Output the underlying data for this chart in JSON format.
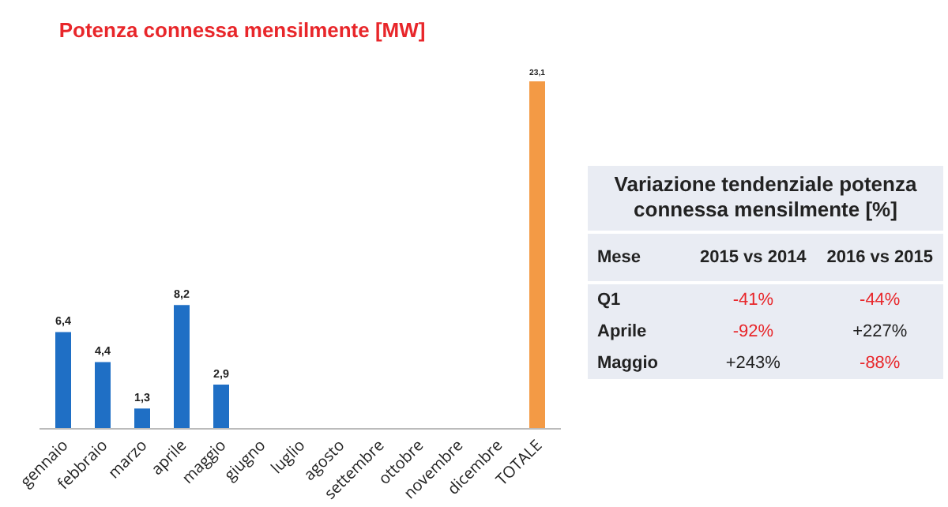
{
  "chart_data": [
    {
      "type": "bar",
      "title": "Potenza connessa mensilmente [MW]",
      "categories": [
        "gennaio",
        "febbraio",
        "marzo",
        "aprile",
        "maggio",
        "giugno",
        "luglio",
        "agosto",
        "settembre",
        "ottobre",
        "novembre",
        "dicembre",
        "TOTALE"
      ],
      "values": [
        6.4,
        4.4,
        1.3,
        8.2,
        2.9,
        null,
        null,
        null,
        null,
        null,
        null,
        null,
        23.1
      ],
      "colors": [
        "#1f6fc5",
        "#1f6fc5",
        "#1f6fc5",
        "#1f6fc5",
        "#1f6fc5",
        "#1f6fc5",
        "#1f6fc5",
        "#1f6fc5",
        "#1f6fc5",
        "#1f6fc5",
        "#1f6fc5",
        "#1f6fc5",
        "#f39a45"
      ],
      "value_labels": [
        "6,4",
        "4,4",
        "1,3",
        "8,2",
        "2,9",
        null,
        null,
        null,
        null,
        null,
        null,
        null,
        "23,1"
      ],
      "grid": false
    },
    {
      "type": "other",
      "title": "Variazione tendenziale potenza connessa mensilmente [%]",
      "categories": [
        "Mese",
        "2015 vs 2014",
        "2016 vs 2015"
      ],
      "y_categories": [
        "Q1",
        "Aprile",
        "Maggio"
      ],
      "cell_labels": [
        [
          "-41%",
          "-44%"
        ],
        [
          "-92%",
          "+227%"
        ],
        [
          "+243%",
          "-88%"
        ]
      ],
      "colors": [
        [
          "#e8262a",
          "#e8262a"
        ],
        [
          "#e8262a",
          "#222222"
        ],
        [
          "#222222",
          "#e8262a"
        ]
      ]
    }
  ]
}
